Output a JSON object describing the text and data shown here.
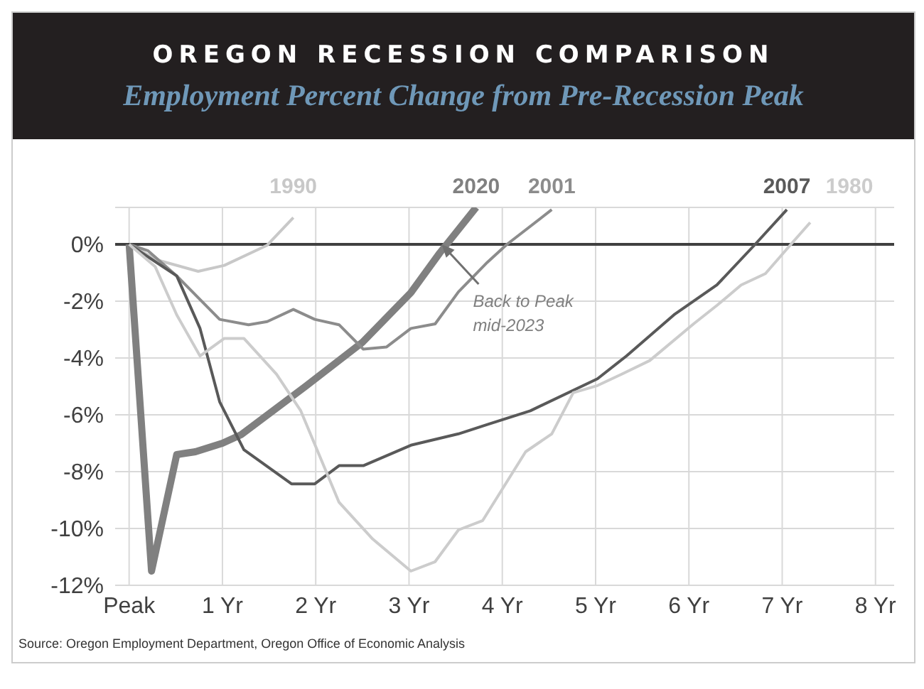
{
  "chart_data": {
    "type": "line",
    "title": "OREGON RECESSION COMPARISON",
    "subtitle": "Employment Percent Change from Pre-Recession Peak",
    "annotations": [
      {
        "text": "Back to Peak mid-2023",
        "x": 3.35,
        "y": 0
      },
      "Source: Oregon Employment Department, Oregon Office of Economic Analysis"
    ],
    "xlim": [
      -0.15,
      8.2
    ],
    "xticks": [
      {
        "value": 0,
        "label": "Peak"
      },
      {
        "value": 1,
        "label": "1 Yr"
      },
      {
        "value": 2,
        "label": "2 Yr"
      },
      {
        "value": 3,
        "label": "3 Yr"
      },
      {
        "value": 4,
        "label": "4 Yr"
      },
      {
        "value": 5,
        "label": "5 Yr"
      },
      {
        "value": 6,
        "label": "6 Yr"
      },
      {
        "value": 7,
        "label": "7 Yr"
      },
      {
        "value": 8,
        "label": "8 Yr"
      }
    ],
    "ylim": [
      -12,
      1.3
    ],
    "yticks": [
      {
        "value": 0,
        "label": "0%"
      },
      {
        "value": -2,
        "label": "-2%"
      },
      {
        "value": -4,
        "label": "-4%"
      },
      {
        "value": -6,
        "label": "-6%"
      },
      {
        "value": -8,
        "label": "-8%"
      },
      {
        "value": -10,
        "label": "-10%"
      },
      {
        "value": -12,
        "label": "-12%"
      }
    ],
    "grid": true,
    "marker": "none",
    "line_style": "solid",
    "ref_lines": [
      {
        "axis": "y",
        "value": 0,
        "color": "#404040"
      }
    ],
    "series": [
      {
        "name": "1990",
        "color": "#c8c8c8",
        "x": [
          0,
          0.3,
          0.74,
          1.02,
          1.48,
          1.76
        ],
        "values": [
          0,
          -0.55,
          -0.95,
          -0.74,
          -0.03,
          0.94
        ]
      },
      {
        "name": "2020",
        "color": "#808080",
        "x": [
          0,
          0.24,
          0.51,
          0.71,
          1.0,
          1.2,
          1.89,
          2.5,
          3.02,
          3.33,
          3.72
        ],
        "values": [
          0,
          -11.5,
          -7.4,
          -7.3,
          -7.0,
          -6.7,
          -5.0,
          -3.45,
          -1.7,
          -0.3,
          1.3
        ]
      },
      {
        "name": "2001",
        "color": "#8c8c8c",
        "x": [
          0,
          0.2,
          0.51,
          0.97,
          1.28,
          1.48,
          1.76,
          1.99,
          2.25,
          2.51,
          2.76,
          3.02,
          3.28,
          3.53,
          3.84,
          4.05,
          4.53
        ],
        "values": [
          0,
          -0.22,
          -1.11,
          -2.64,
          -2.83,
          -2.72,
          -2.29,
          -2.64,
          -2.83,
          -3.69,
          -3.61,
          -2.96,
          -2.8,
          -1.67,
          -0.63,
          0,
          1.22
        ]
      },
      {
        "name": "2007",
        "color": "#595959",
        "x": [
          0,
          0.51,
          0.76,
          0.97,
          1.23,
          1.74,
          1.99,
          2.25,
          2.51,
          3.02,
          3.53,
          3.84,
          4.3,
          5.02,
          5.33,
          5.84,
          6.3,
          6.71,
          7.05
        ],
        "values": [
          0,
          -1.11,
          -2.96,
          -5.54,
          -7.23,
          -8.43,
          -8.43,
          -7.79,
          -7.79,
          -7.07,
          -6.67,
          -6.34,
          -5.86,
          -4.73,
          -3.93,
          -2.48,
          -1.43,
          0,
          1.22
        ]
      },
      {
        "name": "1980",
        "color": "#cccccc",
        "x": [
          0,
          0.28,
          0.51,
          0.76,
          1.02,
          1.23,
          1.58,
          1.84,
          2.25,
          2.61,
          3.02,
          3.28,
          3.53,
          3.79,
          4.25,
          4.53,
          4.76,
          5.02,
          5.28,
          5.58,
          6.05,
          6.3,
          6.56,
          6.82,
          7.12,
          7.3
        ],
        "values": [
          0,
          -0.79,
          -2.48,
          -3.93,
          -3.31,
          -3.31,
          -4.57,
          -5.86,
          -9.08,
          -10.37,
          -11.5,
          -11.17,
          -10.05,
          -9.72,
          -7.3,
          -6.67,
          -5.22,
          -4.97,
          -4.57,
          -4.09,
          -2.8,
          -2.15,
          -1.43,
          -1.03,
          0.1,
          0.77
        ]
      }
    ]
  }
}
